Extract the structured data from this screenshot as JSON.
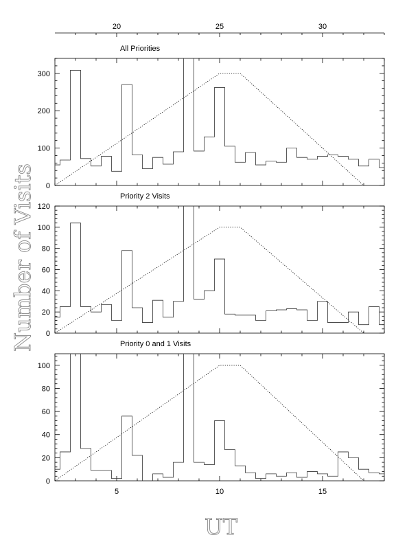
{
  "chart_data": {
    "type": "histogram",
    "ylabel": "Number of Visits",
    "xlabel": "UT",
    "top_axis_ticks": [
      20,
      25,
      30
    ],
    "bottom_axis_ticks": [
      5,
      10,
      15
    ],
    "panels": [
      {
        "title": "All Priorities",
        "ylim": [
          0,
          340
        ],
        "yticks": [
          0,
          100,
          200,
          300
        ],
        "bin_edges": [
          2,
          2.25,
          2.75,
          3.25,
          3.75,
          4.25,
          4.75,
          5.25,
          5.75,
          6.25,
          6.75,
          7.25,
          7.75,
          8.25,
          8.75,
          9.25,
          9.75,
          10.25,
          10.75,
          11.25,
          11.75,
          12.25,
          12.75,
          13.25,
          13.75,
          14.25,
          14.75,
          15.25,
          15.75,
          16.25,
          16.75,
          17.25,
          17.75,
          18
        ],
        "values": [
          55,
          68,
          308,
          72,
          52,
          78,
          38,
          270,
          82,
          45,
          75,
          57,
          90,
          340,
          92,
          130,
          262,
          105,
          62,
          88,
          55,
          65,
          62,
          100,
          75,
          70,
          78,
          82,
          78,
          70,
          52,
          70,
          48
        ],
        "dotted_curve": {
          "x": [
            2.0,
            10.0,
            11.0,
            17.0
          ],
          "y": [
            0,
            300,
            300,
            0
          ]
        }
      },
      {
        "title": "Priority 2 Visits",
        "ylim": [
          0,
          120
        ],
        "yticks": [
          0,
          20,
          40,
          60,
          80,
          100,
          120
        ],
        "bin_edges": [
          2,
          2.25,
          2.75,
          3.25,
          3.75,
          4.25,
          4.75,
          5.25,
          5.75,
          6.25,
          6.75,
          7.25,
          7.75,
          8.25,
          8.75,
          9.25,
          9.75,
          10.25,
          10.75,
          11.25,
          11.75,
          12.25,
          12.75,
          13.25,
          13.75,
          14.25,
          14.75,
          15.25,
          15.75,
          16.25,
          16.75,
          17.25,
          17.75,
          18
        ],
        "values": [
          15,
          25,
          104,
          25,
          20,
          27,
          12,
          78,
          24,
          10,
          31,
          15,
          30,
          120,
          32,
          40,
          70,
          18,
          17,
          17,
          12,
          21,
          22,
          23,
          22,
          12,
          30,
          10,
          10,
          20,
          8,
          25,
          8
        ],
        "dotted_curve": {
          "x": [
            2.0,
            10.0,
            11.0,
            17.0
          ],
          "y": [
            0,
            100,
            100,
            0
          ]
        }
      },
      {
        "title": "Priority 0 and 1 Visits",
        "ylim": [
          0,
          110
        ],
        "yticks": [
          0,
          20,
          40,
          60,
          80,
          100
        ],
        "bin_edges": [
          2,
          2.25,
          2.75,
          3.25,
          3.75,
          4.25,
          4.75,
          5.25,
          5.75,
          6.25,
          6.75,
          7.25,
          7.75,
          8.25,
          8.75,
          9.25,
          9.75,
          10.25,
          10.75,
          11.25,
          11.75,
          12.25,
          12.75,
          13.25,
          13.75,
          14.25,
          14.75,
          15.25,
          15.75,
          16.25,
          16.75,
          17.25,
          17.75,
          18
        ],
        "values": [
          10,
          25,
          110,
          28,
          9,
          9,
          2,
          56,
          22,
          0,
          6,
          3,
          16,
          110,
          16,
          14,
          52,
          27,
          13,
          7,
          2,
          6,
          4,
          7,
          3,
          8,
          6,
          4,
          25,
          20,
          10,
          7,
          6
        ],
        "dotted_curve": {
          "x": [
            2.0,
            10.0,
            11.0,
            17.0
          ],
          "y": [
            0,
            100,
            100,
            0
          ]
        }
      }
    ]
  }
}
